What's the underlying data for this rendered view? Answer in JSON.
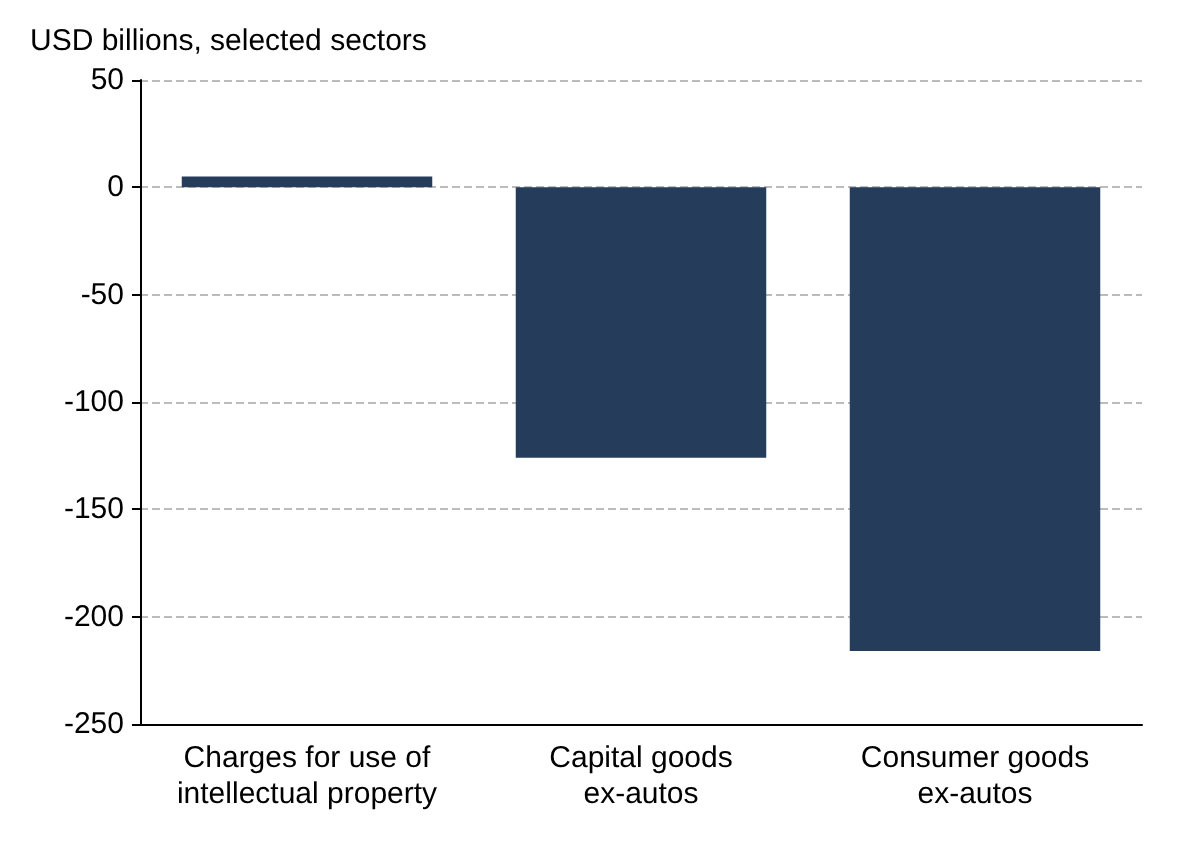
{
  "chart_data": {
    "type": "bar",
    "subtitle": "USD billions, selected sectors",
    "categories": [
      "Charges for use of\nintellectual property",
      "Capital goods\nex-autos",
      "Consumer goods\nex-autos"
    ],
    "values": [
      5,
      -126,
      -216
    ],
    "color": "#253d5b",
    "ylim": [
      -250,
      50
    ],
    "yticks": [
      -250,
      -200,
      -150,
      -100,
      -50,
      0,
      50
    ],
    "grid": "y"
  }
}
